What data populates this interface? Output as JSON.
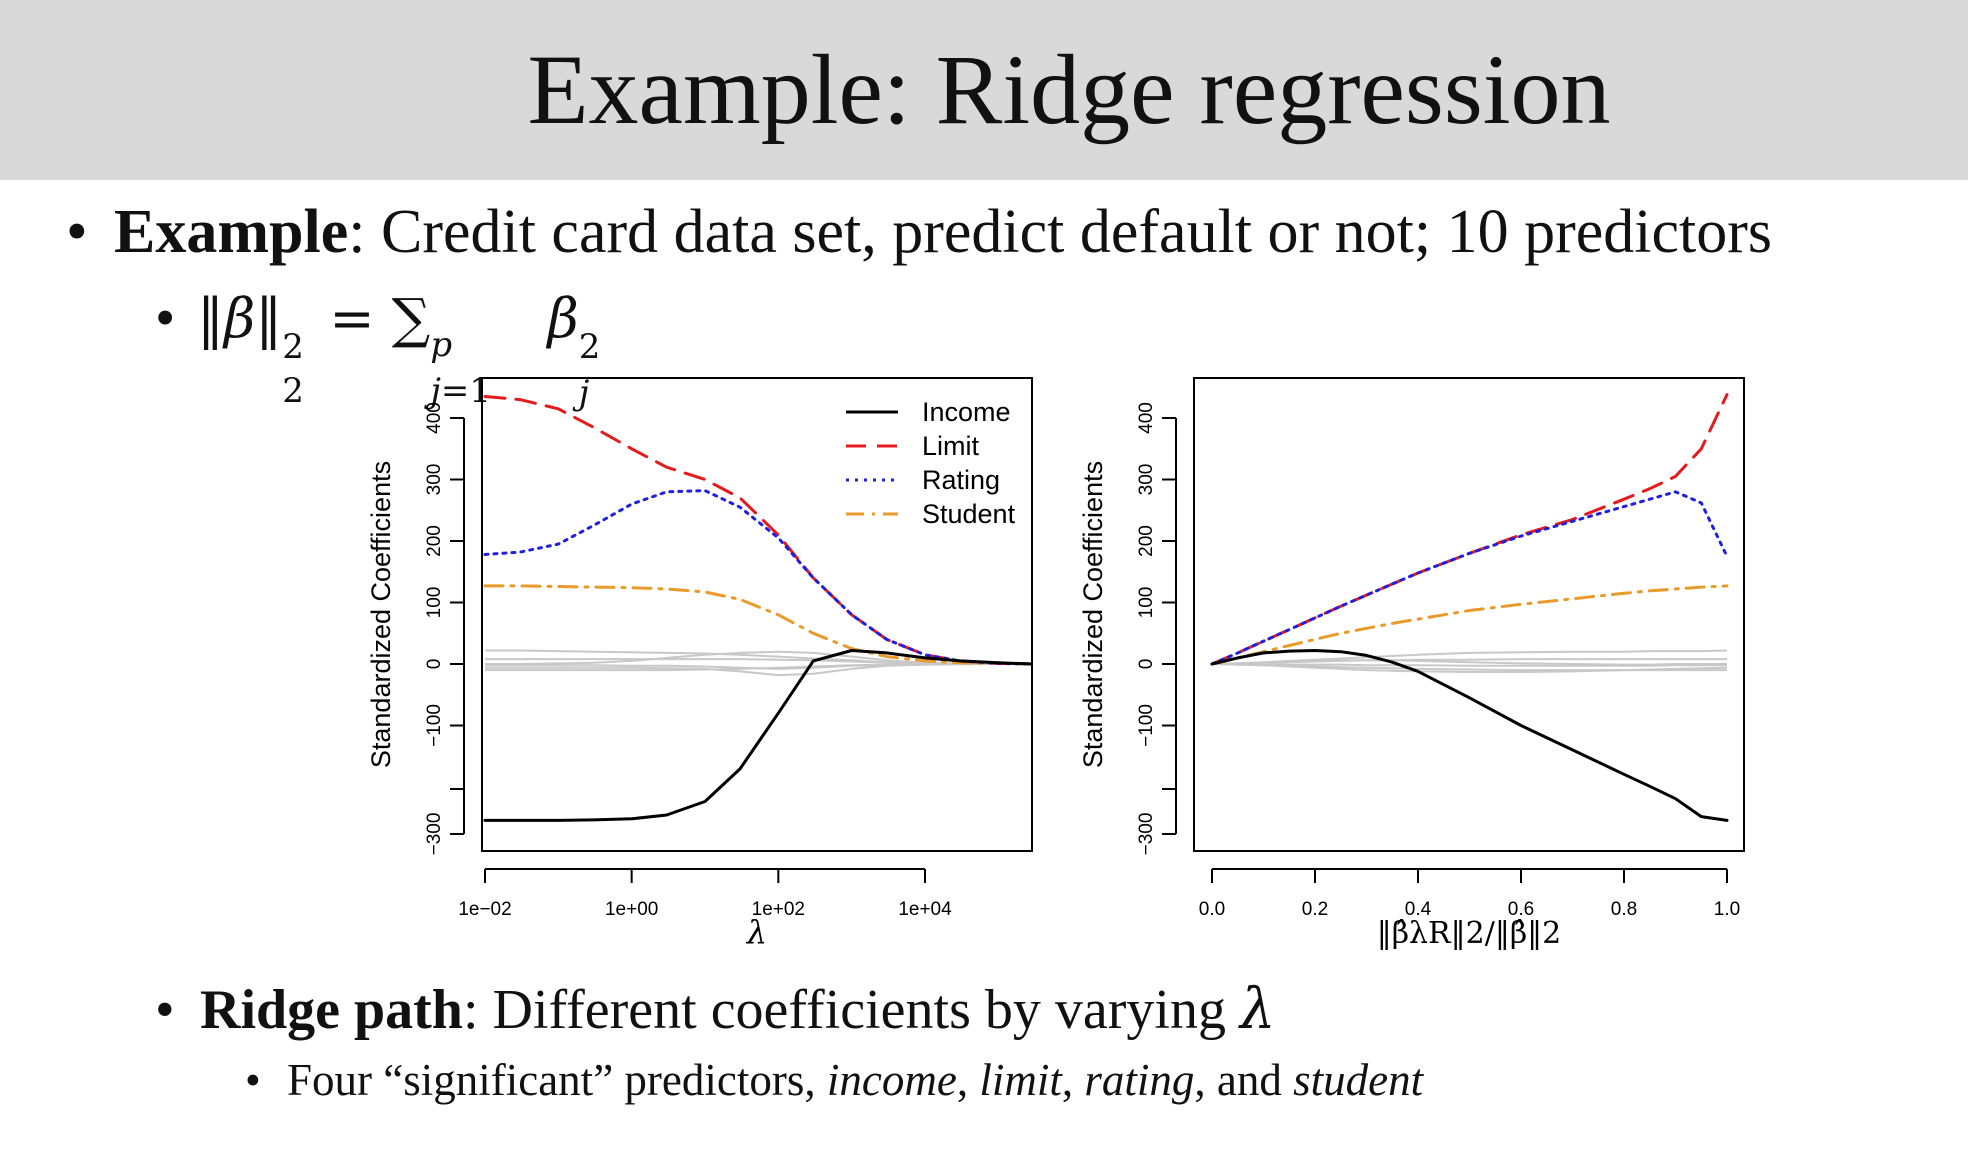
{
  "slide": {
    "title": "Example: Ridge regression",
    "bullet1": {
      "bold": "Example",
      "text": ": Credit card data set, predict default or not; 10 predictors"
    },
    "bullet3": {
      "bold": "Ridge path",
      "text": ": Different coefficients by varying ",
      "lambda": "λ"
    },
    "bullet4": {
      "prefix": "Four “significant” predictors, ",
      "p1": "income",
      "sep1": ", ",
      "p2": "limit",
      "sep2": ", ",
      "p3": "rating",
      "sep3": ", and ",
      "p4": "student"
    }
  },
  "chart_data": [
    {
      "type": "line",
      "title": "",
      "xlabel": "λ",
      "ylabel": "Standardized Coefficients",
      "x_scale": "log",
      "xlim": [
        0.01,
        300000
      ],
      "ylim": [
        -300,
        400
      ],
      "x_ticks": [
        0.01,
        1,
        100,
        10000
      ],
      "x_tick_labels": [
        "1e−02",
        "1e+00",
        "1e+02",
        "1e+04"
      ],
      "y_ticks": [
        -300,
        -100,
        0,
        100,
        200,
        300,
        400
      ],
      "y_tick_labels": [
        "−300",
        "−100",
        "0",
        "100",
        "200",
        "300",
        "400"
      ],
      "legend_position": "top-right",
      "x": [
        0.01,
        0.03,
        0.1,
        0.3,
        1,
        3,
        10,
        30,
        100,
        300,
        1000,
        3000,
        10000,
        30000,
        100000,
        300000
      ],
      "series": [
        {
          "name": "Income",
          "color": "#000000",
          "dash": "solid",
          "values": [
            -275,
            -275,
            -275,
            -274,
            -272,
            -265,
            -240,
            -180,
            -80,
            5,
            22,
            18,
            10,
            5,
            2,
            0
          ]
        },
        {
          "name": "Limit",
          "color": "#e41a1c",
          "dash": "dashed",
          "values": [
            435,
            430,
            415,
            385,
            350,
            320,
            300,
            270,
            210,
            140,
            80,
            40,
            15,
            5,
            1,
            0
          ]
        },
        {
          "name": "Rating",
          "color": "#1f1fe0",
          "dash": "dotted",
          "values": [
            178,
            182,
            195,
            225,
            260,
            280,
            282,
            255,
            205,
            140,
            80,
            40,
            15,
            5,
            1,
            0
          ]
        },
        {
          "name": "Student",
          "color": "#e89b2a",
          "dash": "dashdot",
          "values": [
            127,
            127,
            126,
            125,
            124,
            122,
            117,
            105,
            80,
            50,
            25,
            12,
            5,
            2,
            1,
            0
          ]
        }
      ],
      "background_series": [
        [
          22,
          22,
          21,
          20,
          19,
          18,
          17,
          15,
          12,
          9,
          6,
          3,
          1,
          0.5,
          0.2,
          0
        ],
        [
          8,
          8,
          8,
          8,
          8,
          8,
          8,
          8,
          7,
          6,
          4,
          2,
          1,
          0.5,
          0.2,
          0
        ],
        [
          0,
          0,
          1,
          2,
          5,
          10,
          15,
          18,
          20,
          18,
          12,
          6,
          2,
          0.8,
          0.3,
          0
        ],
        [
          -2,
          -2,
          -2,
          -2,
          -3,
          -3,
          -4,
          -6,
          -8,
          -6,
          -3,
          -2,
          -1,
          0,
          0,
          0
        ],
        [
          -6,
          -6,
          -6,
          -6,
          -6,
          -7,
          -8,
          -12,
          -18,
          -16,
          -8,
          -3,
          -1,
          -0.5,
          0,
          0
        ],
        [
          -10,
          -10,
          -10,
          -10,
          -10,
          -10,
          -9,
          -8,
          -6,
          -4,
          -2,
          -1,
          0,
          0,
          0,
          0
        ]
      ],
      "background_color": "#c8c8c8"
    },
    {
      "type": "line",
      "title": "",
      "xlabel": "‖β̂λR‖2/‖β̂‖2",
      "ylabel": "Standardized Coefficients",
      "xlim": [
        0,
        1
      ],
      "ylim": [
        -300,
        400
      ],
      "x_ticks": [
        0,
        0.2,
        0.4,
        0.6,
        0.8,
        1.0
      ],
      "x_tick_labels": [
        "0.0",
        "0.2",
        "0.4",
        "0.6",
        "0.8",
        "1.0"
      ],
      "y_ticks": [
        -300,
        -100,
        0,
        100,
        200,
        300,
        400
      ],
      "y_tick_labels": [
        "−300",
        "−100",
        "0",
        "100",
        "200",
        "300",
        "400"
      ],
      "x": [
        0,
        0.05,
        0.1,
        0.15,
        0.2,
        0.25,
        0.3,
        0.35,
        0.4,
        0.5,
        0.6,
        0.7,
        0.8,
        0.85,
        0.9,
        0.95,
        1.0
      ],
      "series": [
        {
          "name": "Income",
          "color": "#000000",
          "dash": "solid",
          "values": [
            0,
            10,
            18,
            21,
            22,
            20,
            14,
            3,
            -12,
            -55,
            -100,
            -145,
            -190,
            -212,
            -235,
            -268,
            -275
          ]
        },
        {
          "name": "Limit",
          "color": "#e41a1c",
          "dash": "dashed",
          "values": [
            0,
            18,
            37,
            56,
            75,
            94,
            112,
            130,
            148,
            180,
            210,
            235,
            268,
            285,
            305,
            350,
            438
          ]
        },
        {
          "name": "Rating",
          "color": "#1f1fe0",
          "dash": "dotted",
          "values": [
            0,
            18,
            37,
            56,
            75,
            94,
            112,
            130,
            148,
            180,
            208,
            232,
            256,
            268,
            280,
            262,
            175
          ]
        },
        {
          "name": "Student",
          "color": "#e89b2a",
          "dash": "dashdot",
          "values": [
            0,
            10,
            20,
            30,
            40,
            50,
            58,
            66,
            73,
            87,
            97,
            106,
            115,
            119,
            122,
            125,
            127
          ]
        }
      ],
      "background_series": [
        [
          0,
          1,
          3,
          5,
          7,
          9,
          11,
          13,
          15,
          18,
          19,
          20,
          20,
          21,
          21,
          21,
          22
        ],
        [
          0,
          1,
          2,
          3,
          4,
          5,
          6,
          6,
          7,
          7,
          8,
          8,
          8,
          8,
          8,
          8,
          8
        ],
        [
          0,
          0,
          0,
          -1,
          -1,
          -1,
          -2,
          -2,
          -2,
          -3,
          -3,
          -3,
          -3,
          -3,
          -2,
          -2,
          -2
        ],
        [
          0,
          -1,
          -2,
          -3,
          -4,
          -5,
          -6,
          -7,
          -8,
          -9,
          -10,
          -10,
          -10,
          -10,
          -10,
          -10,
          -10
        ],
        [
          0,
          -1,
          -2,
          -4,
          -6,
          -8,
          -10,
          -11,
          -12,
          -13,
          -13,
          -12,
          -10,
          -9,
          -8,
          -7,
          -6
        ],
        [
          0,
          1,
          2,
          4,
          5,
          6,
          6,
          6,
          5,
          3,
          1,
          0,
          -1,
          -1,
          0,
          0,
          0
        ]
      ],
      "background_color": "#c8c8c8"
    }
  ]
}
